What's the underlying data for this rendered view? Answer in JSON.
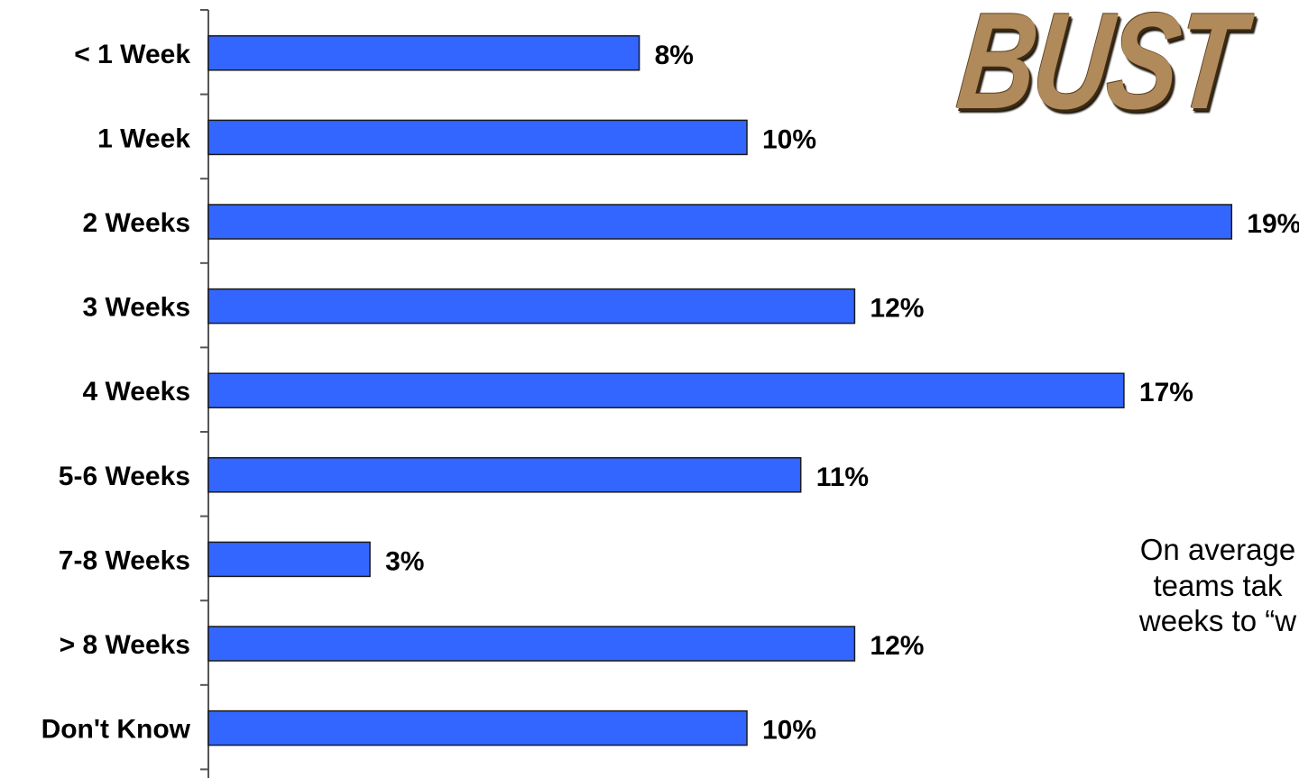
{
  "logo_text": "BUST",
  "annotation": {
    "line1": "On average",
    "line2": "teams tak",
    "line3": "weeks to “w"
  },
  "colors": {
    "bar": "#3366ff",
    "bar_stroke": "#1a1a1a",
    "logo": "#b08a5a"
  },
  "chart_data": {
    "type": "bar",
    "orientation": "horizontal",
    "categories": [
      "< 1 Week",
      "1 Week",
      "2 Weeks",
      "3 Weeks",
      "4 Weeks",
      "5-6 Weeks",
      "7-8 Weeks",
      "> 8 Weeks",
      "Don't Know"
    ],
    "values": [
      8,
      10,
      19,
      12,
      17,
      11,
      3,
      12,
      10
    ],
    "value_labels": [
      "8%",
      "10%",
      "19%",
      "12%",
      "17%",
      "11%",
      "3%",
      "12%",
      "10%"
    ],
    "title": "",
    "xlabel": "",
    "ylabel": "",
    "grid": false
  }
}
